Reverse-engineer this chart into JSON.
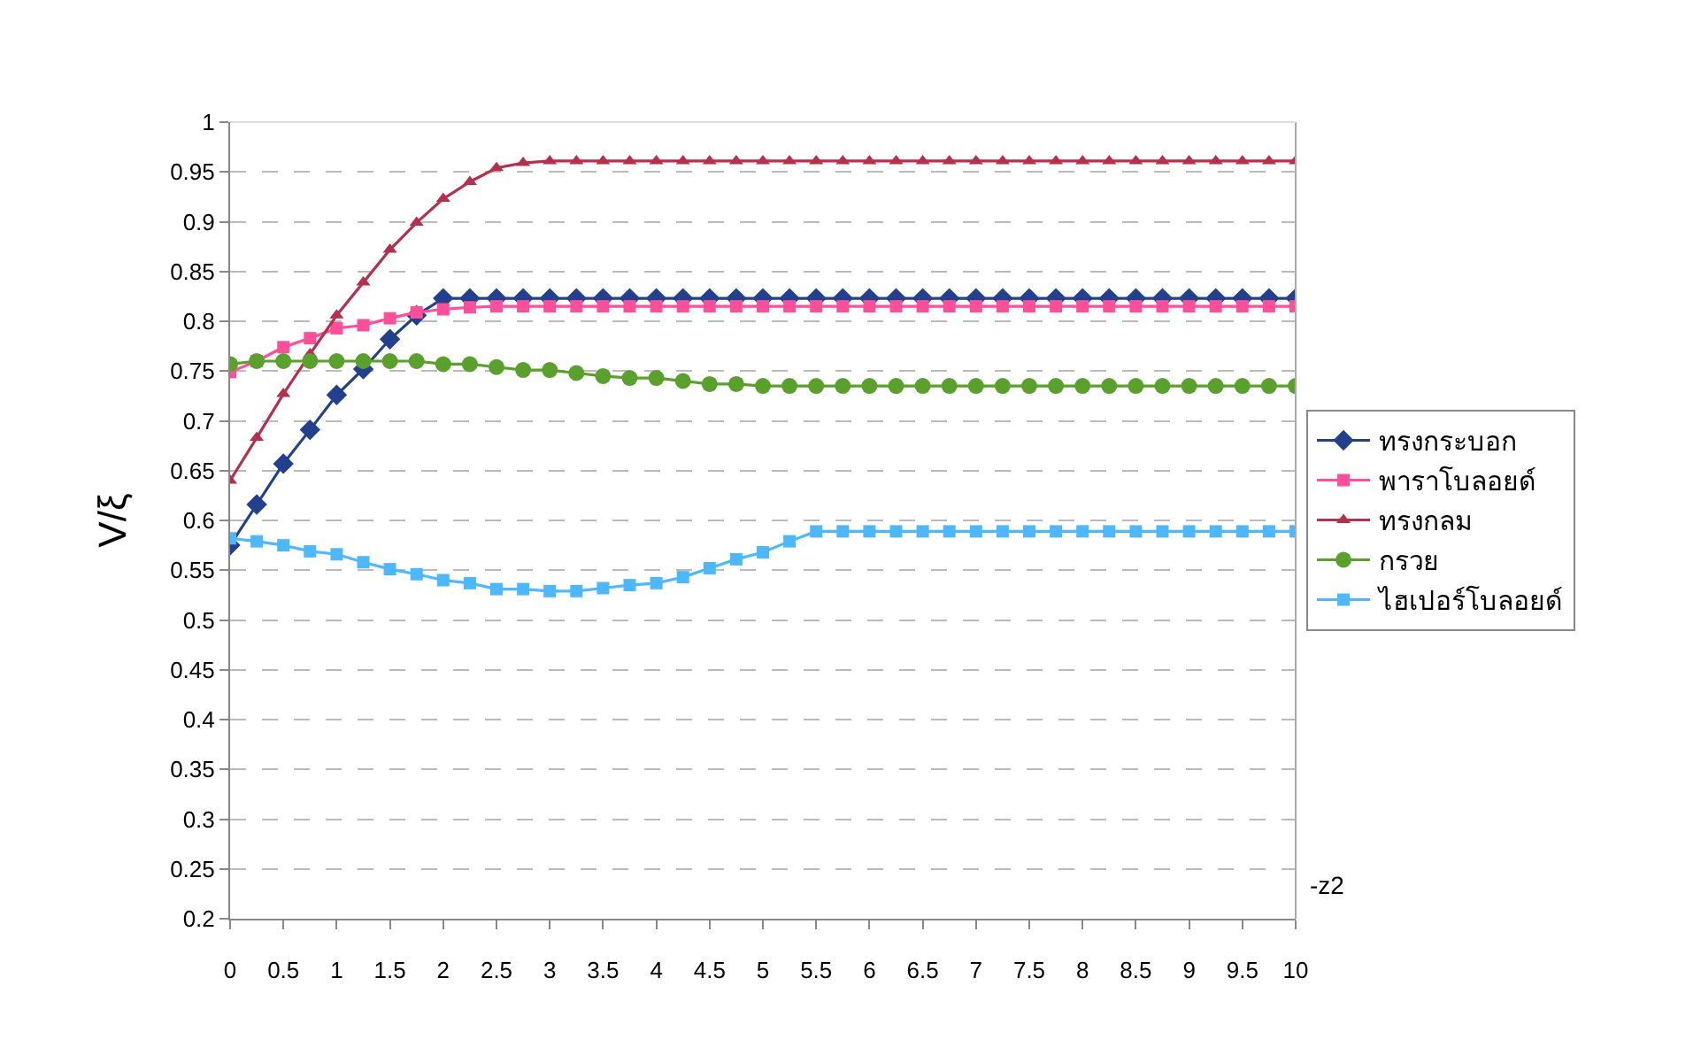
{
  "chart_data": {
    "type": "line",
    "xlabel": "-z2",
    "ylabel": "V/ξ",
    "xlim": [
      0,
      10
    ],
    "xticks": [
      0,
      0.5,
      1,
      1.5,
      2,
      2.5,
      3,
      3.5,
      4,
      4.5,
      5,
      5.5,
      6,
      6.5,
      7,
      7.5,
      8,
      8.5,
      9,
      9.5,
      10
    ],
    "ylim": [
      0.2,
      1
    ],
    "yticks": [
      0.2,
      0.25,
      0.3,
      0.35,
      0.4,
      0.45,
      0.5,
      0.55,
      0.6,
      0.65,
      0.7,
      0.75,
      0.8,
      0.85,
      0.9,
      0.95,
      1
    ],
    "grid": "y",
    "legend": "right",
    "line_style": "solid",
    "x": [
      0,
      0.25,
      0.5,
      0.75,
      1,
      1.25,
      1.5,
      1.75,
      2,
      2.25,
      2.5,
      2.75,
      3,
      3.25,
      3.5,
      3.75,
      4,
      4.25,
      4.5,
      4.75,
      5,
      5.25,
      5.5,
      5.75,
      6,
      6.25,
      6.5,
      6.75,
      7,
      7.25,
      7.5,
      7.75,
      8,
      8.25,
      8.5,
      8.75,
      9,
      9.25,
      9.5,
      9.75,
      10
    ],
    "series": [
      {
        "name": "ทรงกระบอก",
        "color": "#23408e",
        "marker": "diamond",
        "values": [
          0.575,
          0.616,
          0.657,
          0.691,
          0.726,
          0.752,
          0.782,
          0.806,
          0.823,
          0.823,
          0.823,
          0.823,
          0.823,
          0.823,
          0.823,
          0.823,
          0.823,
          0.823,
          0.823,
          0.823,
          0.823,
          0.823,
          0.823,
          0.823,
          0.823,
          0.823,
          0.823,
          0.823,
          0.823,
          0.823,
          0.823,
          0.823,
          0.823,
          0.823,
          0.823,
          0.823,
          0.823,
          0.823,
          0.823,
          0.823,
          0.823
        ]
      },
      {
        "name": "พาราโบลอยด์",
        "color": "#ff4f9b",
        "marker": "square",
        "values": [
          0.749,
          0.76,
          0.774,
          0.783,
          0.793,
          0.796,
          0.803,
          0.809,
          0.812,
          0.814,
          0.815,
          0.815,
          0.815,
          0.815,
          0.815,
          0.815,
          0.815,
          0.815,
          0.815,
          0.815,
          0.815,
          0.815,
          0.815,
          0.815,
          0.815,
          0.815,
          0.815,
          0.815,
          0.815,
          0.815,
          0.815,
          0.815,
          0.815,
          0.815,
          0.815,
          0.815,
          0.815,
          0.815,
          0.815,
          0.815,
          0.815
        ]
      },
      {
        "name": "ทรงกลม",
        "color": "#b4304d",
        "marker": "triangle",
        "values": [
          0.64,
          0.683,
          0.727,
          0.767,
          0.806,
          0.839,
          0.872,
          0.899,
          0.923,
          0.94,
          0.954,
          0.959,
          0.961,
          0.961,
          0.961,
          0.961,
          0.961,
          0.961,
          0.961,
          0.961,
          0.961,
          0.961,
          0.961,
          0.961,
          0.961,
          0.961,
          0.961,
          0.961,
          0.961,
          0.961,
          0.961,
          0.961,
          0.961,
          0.961,
          0.961,
          0.961,
          0.961,
          0.961,
          0.961,
          0.961,
          0.961
        ]
      },
      {
        "name": "กรวย",
        "color": "#5aa02c",
        "marker": "circle",
        "values": [
          0.757,
          0.76,
          0.76,
          0.76,
          0.76,
          0.76,
          0.76,
          0.76,
          0.757,
          0.757,
          0.754,
          0.751,
          0.751,
          0.748,
          0.745,
          0.743,
          0.743,
          0.74,
          0.737,
          0.737,
          0.735,
          0.735,
          0.735,
          0.735,
          0.735,
          0.735,
          0.735,
          0.735,
          0.735,
          0.735,
          0.735,
          0.735,
          0.735,
          0.735,
          0.735,
          0.735,
          0.735,
          0.735,
          0.735,
          0.735,
          0.735
        ]
      },
      {
        "name": "ไฮเปอร์โบลอยด์",
        "color": "#4db8ff",
        "marker": "square",
        "values": [
          0.582,
          0.579,
          0.575,
          0.569,
          0.566,
          0.558,
          0.551,
          0.546,
          0.54,
          0.537,
          0.531,
          0.531,
          0.529,
          0.529,
          0.532,
          0.535,
          0.537,
          0.543,
          0.552,
          0.561,
          0.568,
          0.579,
          0.589,
          0.589,
          0.589,
          0.589,
          0.589,
          0.589,
          0.589,
          0.589,
          0.589,
          0.589,
          0.589,
          0.589,
          0.589,
          0.589,
          0.589,
          0.589,
          0.589,
          0.589,
          0.589
        ]
      }
    ]
  }
}
